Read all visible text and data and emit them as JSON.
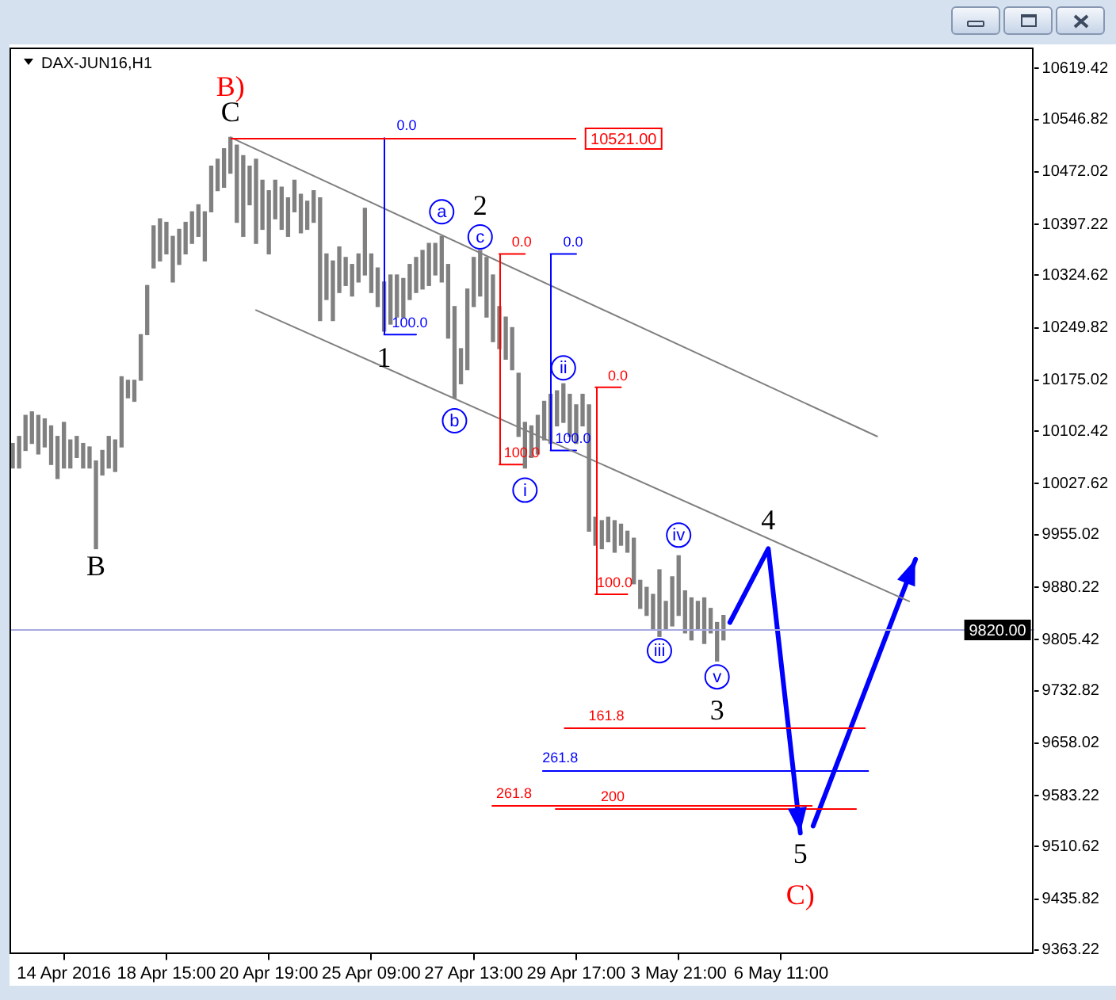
{
  "chart_data": {
    "type": "bar",
    "title": "DAX-JUN16,H1",
    "categories": [
      null,
      null,
      null,
      null,
      null,
      null,
      null,
      null,
      "14 Apr 2016",
      null,
      null,
      null,
      null,
      null,
      null,
      null,
      null,
      null,
      null,
      null,
      null,
      null,
      null,
      null,
      "18 Apr 15:00",
      null,
      null,
      null,
      null,
      null,
      null,
      null,
      null,
      null,
      null,
      null,
      null,
      null,
      null,
      null,
      "20 Apr 19:00",
      null,
      null,
      null,
      null,
      null,
      null,
      null,
      null,
      null,
      null,
      null,
      null,
      null,
      null,
      null,
      "25 Apr 09:00",
      null,
      null,
      null,
      null,
      null,
      null,
      null,
      null,
      null,
      null,
      null,
      null,
      null,
      null,
      null,
      "27 Apr 13:00",
      null,
      null,
      null,
      null,
      null,
      null,
      null,
      null,
      null,
      null,
      null,
      null,
      null,
      null,
      null,
      "29 Apr 17:00",
      null,
      null,
      null,
      null,
      null,
      null,
      null,
      null,
      null,
      null,
      null,
      null,
      null,
      null,
      null,
      "3 May 21:00",
      null,
      null,
      null,
      null,
      null,
      null,
      null,
      null,
      null,
      null,
      null,
      null,
      null,
      null,
      null,
      "6 May 11:00",
      null,
      null,
      null,
      null,
      null,
      null,
      null,
      null,
      null,
      null,
      null,
      null,
      null,
      null,
      null,
      null,
      null,
      null,
      null,
      null,
      null,
      null,
      null,
      null,
      null,
      null,
      null,
      null,
      null,
      null,
      null,
      null,
      null,
      null,
      null,
      null,
      null,
      null,
      null
    ],
    "series": [
      {
        "color": "#808080",
        "base": [
          10050,
          10050,
          10075,
          10085,
          10070,
          10080,
          10055,
          10035,
          10050,
          10050,
          10065,
          10050,
          10050,
          9935,
          10040,
          10050,
          10045,
          10080,
          10150,
          10145,
          10175,
          10240,
          10335,
          10345,
          10355,
          10315,
          10340,
          10355,
          10370,
          10380,
          10345,
          10415,
          10445,
          10450,
          10470,
          10400,
          10380,
          10425,
          10370,
          10390,
          10355,
          10405,
          10390,
          10380,
          10415,
          10385,
          10390,
          10400,
          10260,
          10290,
          10260,
          10300,
          10310,
          10295,
          10315,
          10325,
          10300,
          10280,
          10245,
          10255,
          10265,
          10265,
          10290,
          10300,
          10305,
          10310,
          10325,
          10315,
          10235,
          10150,
          10170,
          10190,
          10280,
          10295,
          10265,
          10230,
          10220,
          10205,
          10190,
          10095,
          10050,
          10065,
          10070,
          10090,
          10085,
          10110,
          10115,
          10095,
          10085,
          10110,
          9960,
          9940,
          9935,
          9945,
          9930,
          9940,
          9930,
          9885,
          9850,
          9840,
          9820,
          9810,
          9820,
          9825,
          9840,
          9815,
          9805,
          9820,
          9800,
          9815,
          9775,
          9805,
          null,
          null,
          null,
          null,
          null,
          null,
          null,
          null,
          null,
          null,
          null,
          null,
          null,
          null,
          null,
          null,
          null,
          null,
          null,
          null,
          null,
          null,
          null,
          null,
          null,
          null,
          null,
          null,
          null,
          null,
          null,
          null,
          null,
          null,
          null,
          null,
          null,
          null,
          null,
          null,
          null,
          null,
          null,
          null,
          null,
          null,
          null,
          null
        ],
        "values": [
          35,
          45,
          50,
          45,
          55,
          40,
          55,
          60,
          65,
          40,
          30,
          35,
          30,
          125,
          35,
          45,
          45,
          100,
          25,
          30,
          65,
          70,
          60,
          60,
          45,
          65,
          50,
          45,
          45,
          45,
          70,
          65,
          45,
          55,
          51,
          110,
          115,
          55,
          120,
          70,
          90,
          55,
          60,
          55,
          45,
          55,
          40,
          45,
          175,
          65,
          85,
          65,
          40,
          45,
          40,
          95,
          55,
          55,
          70,
          70,
          60,
          55,
          50,
          50,
          55,
          60,
          45,
          65,
          105,
          130,
          50,
          115,
          70,
          65,
          85,
          95,
          60,
          60,
          60,
          90,
          65,
          45,
          55,
          55,
          70,
          50,
          55,
          60,
          55,
          45,
          180,
          40,
          40,
          35,
          45,
          30,
          30,
          65,
          40,
          40,
          50,
          95,
          40,
          70,
          85,
          60,
          60,
          40,
          65,
          35,
          55,
          35,
          null,
          null,
          null,
          null,
          null,
          null,
          null,
          null,
          null,
          null,
          null,
          null,
          null,
          null,
          null,
          null,
          null,
          null,
          null,
          null,
          null,
          null,
          null,
          null,
          null,
          null,
          null,
          null,
          null,
          null,
          null,
          null,
          null,
          null,
          null,
          null,
          null,
          null,
          null,
          null,
          null,
          null,
          null,
          null,
          null,
          null,
          null,
          null
        ]
      },
      {
        "type": "line",
        "color": "#808080",
        "values": [
          null,
          null,
          null,
          null,
          null,
          null,
          null,
          null,
          null,
          null,
          null,
          null,
          null,
          null,
          null,
          null,
          null,
          null,
          null,
          null,
          null,
          null,
          null,
          null,
          null,
          null,
          null,
          null,
          null,
          null,
          null,
          null,
          null,
          null,
          10521,
          null,
          null,
          null,
          null,
          null,
          null,
          null,
          null,
          null,
          null,
          null,
          null,
          null,
          null,
          null,
          null,
          null,
          null,
          null,
          null,
          null,
          null,
          null,
          null,
          null,
          null,
          null,
          null,
          null,
          null,
          null,
          null,
          null,
          null,
          null,
          null,
          null,
          null,
          null,
          null,
          null,
          null,
          null,
          null,
          null,
          null,
          null,
          null,
          null,
          null,
          null,
          null,
          null,
          null,
          null,
          null,
          null,
          null,
          null,
          null,
          null,
          null,
          null,
          null,
          null,
          null,
          null,
          null,
          null,
          null,
          null,
          null,
          null,
          null,
          null,
          null,
          null,
          null,
          null,
          null,
          null,
          null,
          null,
          null,
          null,
          null,
          null,
          null,
          null,
          null,
          null,
          null,
          null,
          null,
          null,
          null,
          null,
          null,
          null,
          null,
          10095,
          null,
          null,
          null,
          null,
          null,
          null,
          null,
          null,
          null,
          null,
          null,
          null,
          null,
          null,
          null,
          null,
          null,
          null,
          null,
          null,
          null,
          null,
          null,
          null
        ]
      },
      {
        "type": "line",
        "color": "#808080",
        "values": [
          null,
          null,
          null,
          null,
          null,
          null,
          null,
          null,
          null,
          null,
          null,
          null,
          null,
          null,
          null,
          null,
          null,
          null,
          null,
          null,
          null,
          null,
          null,
          null,
          null,
          null,
          null,
          null,
          null,
          null,
          null,
          null,
          null,
          null,
          null,
          null,
          null,
          null,
          10275,
          null,
          null,
          null,
          null,
          null,
          null,
          null,
          null,
          null,
          null,
          null,
          null,
          null,
          null,
          null,
          null,
          null,
          null,
          null,
          null,
          null,
          null,
          null,
          null,
          null,
          null,
          null,
          null,
          null,
          null,
          null,
          null,
          null,
          null,
          null,
          null,
          null,
          null,
          null,
          null,
          null,
          null,
          null,
          null,
          null,
          null,
          null,
          null,
          null,
          null,
          null,
          null,
          null,
          null,
          null,
          null,
          null,
          null,
          null,
          null,
          null,
          null,
          null,
          null,
          null,
          null,
          null,
          null,
          null,
          null,
          null,
          null,
          null,
          null,
          null,
          null,
          null,
          null,
          null,
          null,
          null,
          null,
          null,
          null,
          null,
          null,
          null,
          null,
          null,
          null,
          null,
          null,
          null,
          null,
          null,
          null,
          null,
          null,
          null,
          null,
          null,
          9860,
          null,
          null,
          null,
          null,
          null,
          null,
          null,
          null,
          null,
          null,
          null,
          null,
          null,
          null,
          null,
          null,
          null,
          null,
          null
        ]
      },
      {
        "type": "line",
        "color": "#0000ff",
        "values": [
          null,
          null,
          null,
          null,
          null,
          null,
          null,
          null,
          null,
          null,
          null,
          null,
          null,
          null,
          null,
          null,
          null,
          null,
          null,
          null,
          null,
          null,
          null,
          null,
          null,
          null,
          null,
          null,
          null,
          null,
          null,
          null,
          null,
          null,
          null,
          null,
          null,
          null,
          null,
          null,
          null,
          null,
          null,
          null,
          null,
          null,
          null,
          null,
          null,
          null,
          null,
          null,
          null,
          null,
          null,
          null,
          null,
          null,
          null,
          null,
          null,
          null,
          null,
          null,
          null,
          null,
          null,
          null,
          null,
          null,
          null,
          null,
          null,
          null,
          null,
          null,
          null,
          null,
          null,
          null,
          null,
          null,
          null,
          null,
          null,
          null,
          null,
          null,
          null,
          null,
          null,
          null,
          null,
          null,
          null,
          null,
          null,
          null,
          null,
          null,
          null,
          null,
          null,
          null,
          null,
          null,
          null,
          null,
          null,
          null,
          null,
          null,
          9830,
          null,
          null,
          null,
          null,
          null,
          9935,
          null,
          null,
          null,
          null,
          9530,
          null,
          null,
          null,
          null,
          null,
          null,
          null,
          null,
          null,
          null,
          null,
          null,
          null,
          null,
          null,
          null,
          null,
          null,
          null,
          null,
          null,
          null,
          null,
          null,
          null,
          null,
          null,
          null,
          null,
          null,
          null,
          null,
          null,
          null,
          null,
          null
        ]
      },
      {
        "type": "line",
        "color": "#0000ff",
        "values": [
          null,
          null,
          null,
          null,
          null,
          null,
          null,
          null,
          null,
          null,
          null,
          null,
          null,
          null,
          null,
          null,
          null,
          null,
          null,
          null,
          null,
          null,
          null,
          null,
          null,
          null,
          null,
          null,
          null,
          null,
          null,
          null,
          null,
          null,
          null,
          null,
          null,
          null,
          null,
          null,
          null,
          null,
          null,
          null,
          null,
          null,
          null,
          null,
          null,
          null,
          null,
          null,
          null,
          null,
          null,
          null,
          null,
          null,
          null,
          null,
          null,
          null,
          null,
          null,
          null,
          null,
          null,
          null,
          null,
          null,
          null,
          null,
          null,
          null,
          null,
          null,
          null,
          null,
          null,
          null,
          null,
          null,
          null,
          null,
          null,
          null,
          null,
          null,
          null,
          null,
          null,
          null,
          null,
          null,
          null,
          null,
          null,
          null,
          null,
          null,
          null,
          null,
          null,
          null,
          null,
          null,
          null,
          null,
          null,
          null,
          null,
          null,
          null,
          null,
          null,
          null,
          null,
          null,
          null,
          null,
          null,
          null,
          null,
          null,
          null,
          9540,
          null,
          null,
          null,
          null,
          null,
          null,
          null,
          null,
          null,
          null,
          null,
          null,
          null,
          null,
          null,
          9920,
          null,
          null,
          null,
          null,
          null,
          null,
          null,
          null,
          null,
          null,
          null,
          null,
          null,
          null,
          null,
          null,
          null,
          null
        ]
      },
      {
        "type": "line",
        "color": "#0000ff",
        "values": [
          null,
          null,
          null,
          null,
          null,
          null,
          null,
          null,
          null,
          null,
          null,
          null,
          null,
          null,
          null,
          null,
          null,
          null,
          null,
          null,
          null,
          null,
          null,
          null,
          null,
          null,
          null,
          null,
          null,
          null,
          null,
          null,
          null,
          null,
          null,
          null,
          null,
          null,
          null,
          null,
          null,
          null,
          null,
          null,
          null,
          null,
          null,
          null,
          null,
          null,
          null,
          null,
          null,
          null,
          null,
          null,
          null,
          null,
          10240,
          null,
          null,
          null,
          null,
          10240,
          null,
          null,
          null,
          null,
          null,
          null,
          null,
          null,
          null,
          null,
          null,
          null,
          null,
          null,
          null,
          null,
          null,
          null,
          null,
          null,
          null,
          null,
          null,
          null,
          null,
          null,
          null,
          null,
          null,
          null,
          null,
          null,
          null,
          null,
          null,
          null,
          null,
          null,
          null,
          null,
          null,
          null,
          null,
          null,
          null,
          null,
          null,
          null,
          null,
          null,
          null,
          null,
          null,
          null,
          null,
          null,
          null,
          null,
          null,
          null,
          null,
          null,
          null,
          null,
          null,
          null,
          null,
          null,
          null,
          null,
          null,
          null,
          null,
          null,
          null,
          null,
          null,
          null,
          null,
          null,
          null,
          null,
          null,
          null,
          null,
          null,
          null,
          null,
          null,
          null,
          null,
          null,
          null,
          null,
          null,
          null
        ]
      },
      {
        "type": "line",
        "color": "#ff0000",
        "values": [
          null,
          null,
          null,
          null,
          null,
          null,
          null,
          null,
          null,
          null,
          null,
          null,
          null,
          null,
          null,
          null,
          null,
          null,
          null,
          null,
          null,
          null,
          null,
          null,
          null,
          null,
          null,
          null,
          null,
          null,
          null,
          null,
          null,
          null,
          null,
          null,
          null,
          null,
          null,
          null,
          null,
          null,
          null,
          null,
          null,
          null,
          null,
          null,
          null,
          null,
          null,
          null,
          null,
          null,
          null,
          null,
          null,
          null,
          null,
          null,
          null,
          null,
          null,
          null,
          null,
          null,
          null,
          null,
          null,
          null,
          null,
          null,
          null,
          null,
          null,
          null,
          10355,
          null,
          null,
          null,
          10355,
          null,
          null,
          null,
          null,
          null,
          null,
          null,
          null,
          null,
          null,
          null,
          null,
          null,
          null,
          null,
          null,
          null,
          null,
          null,
          null,
          null,
          null,
          null,
          null,
          null,
          null,
          null,
          null,
          null,
          null,
          null,
          null,
          null,
          null,
          null,
          null,
          null,
          null,
          null,
          null,
          null,
          null,
          null,
          null,
          null,
          null,
          null,
          null,
          null,
          null,
          null,
          null,
          null,
          null,
          null,
          null,
          null,
          null,
          null,
          null,
          null,
          null,
          null,
          null,
          null,
          null,
          null,
          null,
          null,
          null,
          null,
          null,
          null,
          null,
          null,
          null,
          null,
          null,
          null
        ]
      },
      {
        "type": "line",
        "color": "#ff0000",
        "values": [
          null,
          null,
          null,
          null,
          null,
          null,
          null,
          null,
          null,
          null,
          null,
          null,
          null,
          null,
          null,
          null,
          null,
          null,
          null,
          null,
          null,
          null,
          null,
          null,
          null,
          null,
          null,
          null,
          null,
          null,
          null,
          null,
          null,
          null,
          null,
          null,
          null,
          null,
          null,
          null,
          null,
          null,
          null,
          null,
          null,
          null,
          null,
          null,
          null,
          null,
          null,
          null,
          null,
          null,
          null,
          null,
          null,
          null,
          null,
          null,
          null,
          null,
          null,
          null,
          null,
          null,
          null,
          null,
          null,
          null,
          null,
          null,
          null,
          null,
          null,
          null,
          10055,
          null,
          null,
          null,
          10055,
          null,
          null,
          null,
          null,
          null,
          null,
          null,
          null,
          null,
          null,
          null,
          null,
          null,
          null,
          null,
          null,
          null,
          null,
          null,
          null,
          null,
          null,
          null,
          null,
          null,
          null,
          null,
          null,
          null,
          null,
          null,
          null,
          null,
          null,
          null,
          null,
          null,
          null,
          null,
          null,
          null,
          null,
          null,
          null,
          null,
          null,
          null,
          null,
          null,
          null,
          null,
          null,
          null,
          null,
          null,
          null,
          null,
          null,
          null,
          null,
          null,
          null,
          null,
          null,
          null,
          null,
          null,
          null,
          null,
          null,
          null,
          null,
          null,
          null,
          null,
          null,
          null,
          null,
          null
        ]
      },
      {
        "type": "line",
        "color": "#0000ff",
        "values": [
          null,
          null,
          null,
          null,
          null,
          null,
          null,
          null,
          null,
          null,
          null,
          null,
          null,
          null,
          null,
          null,
          null,
          null,
          null,
          null,
          null,
          null,
          null,
          null,
          null,
          null,
          null,
          null,
          null,
          null,
          null,
          null,
          null,
          null,
          null,
          null,
          null,
          null,
          null,
          null,
          null,
          null,
          null,
          null,
          null,
          null,
          null,
          null,
          null,
          null,
          null,
          null,
          null,
          null,
          null,
          null,
          null,
          null,
          null,
          null,
          null,
          null,
          null,
          null,
          null,
          null,
          null,
          null,
          null,
          null,
          null,
          null,
          null,
          null,
          null,
          null,
          null,
          null,
          null,
          null,
          null,
          null,
          null,
          null,
          10355,
          null,
          null,
          null,
          10355,
          null,
          null,
          null,
          null,
          null,
          null,
          null,
          null,
          null,
          null,
          null,
          null,
          null,
          null,
          null,
          null,
          null,
          null,
          null,
          null,
          null,
          null,
          null,
          null,
          null,
          null,
          null,
          null,
          null,
          null,
          null,
          null,
          null,
          null,
          null,
          null,
          null,
          null,
          null,
          null,
          null,
          null,
          null,
          null,
          null,
          null,
          null,
          null,
          null,
          null,
          null,
          null,
          null,
          null,
          null,
          null,
          null,
          null,
          null,
          null,
          null,
          null,
          null,
          null,
          null,
          null,
          null,
          null,
          null,
          null,
          null
        ]
      },
      {
        "type": "line",
        "color": "#0000ff",
        "values": [
          null,
          null,
          null,
          null,
          null,
          null,
          null,
          null,
          null,
          null,
          null,
          null,
          null,
          null,
          null,
          null,
          null,
          null,
          null,
          null,
          null,
          null,
          null,
          null,
          null,
          null,
          null,
          null,
          null,
          null,
          null,
          null,
          null,
          null,
          null,
          null,
          null,
          null,
          null,
          null,
          null,
          null,
          null,
          null,
          null,
          null,
          null,
          null,
          null,
          null,
          null,
          null,
          null,
          null,
          null,
          null,
          null,
          null,
          null,
          null,
          null,
          null,
          null,
          null,
          null,
          null,
          null,
          null,
          null,
          null,
          null,
          null,
          null,
          null,
          null,
          null,
          null,
          null,
          null,
          null,
          null,
          null,
          null,
          null,
          10075,
          null,
          null,
          null,
          10075,
          null,
          null,
          null,
          null,
          null,
          null,
          null,
          null,
          null,
          null,
          null,
          null,
          null,
          null,
          null,
          null,
          null,
          null,
          null,
          null,
          null,
          null,
          null,
          null,
          null,
          null,
          null,
          null,
          null,
          null,
          null,
          null,
          null,
          null,
          null,
          null,
          null,
          null,
          null,
          null,
          null,
          null,
          null,
          null,
          null,
          null,
          null,
          null,
          null,
          null,
          null,
          null,
          null,
          null,
          null,
          null,
          null,
          null,
          null,
          null,
          null,
          null,
          null,
          null,
          null,
          null,
          null,
          null,
          null,
          null,
          null
        ]
      },
      {
        "type": "line",
        "color": "#ff0000",
        "values": [
          null,
          null,
          null,
          null,
          null,
          null,
          null,
          null,
          null,
          null,
          null,
          null,
          null,
          null,
          null,
          null,
          null,
          null,
          null,
          null,
          null,
          null,
          null,
          null,
          null,
          null,
          null,
          null,
          null,
          null,
          null,
          null,
          null,
          null,
          null,
          null,
          null,
          null,
          null,
          null,
          null,
          null,
          null,
          null,
          null,
          null,
          null,
          null,
          null,
          null,
          null,
          null,
          null,
          null,
          null,
          null,
          null,
          null,
          null,
          null,
          null,
          null,
          null,
          null,
          null,
          null,
          null,
          null,
          null,
          null,
          null,
          null,
          null,
          null,
          null,
          null,
          null,
          null,
          null,
          null,
          null,
          null,
          null,
          null,
          null,
          null,
          null,
          null,
          null,
          null,
          null,
          10165,
          null,
          null,
          null,
          10165,
          null,
          null,
          null,
          null,
          null,
          null,
          null,
          null,
          null,
          null,
          null,
          null,
          null,
          null,
          null,
          null,
          null,
          null,
          null,
          null,
          null,
          null,
          null,
          null,
          null,
          null,
          null,
          null,
          null,
          null,
          null,
          null,
          null,
          null,
          null,
          null,
          null,
          null,
          null,
          null,
          null,
          null,
          null,
          null,
          null,
          null,
          null,
          null,
          null,
          null,
          null,
          null,
          null,
          null,
          null,
          null,
          null,
          null,
          null,
          null,
          null,
          null,
          null,
          null
        ]
      },
      {
        "type": "line",
        "color": "#ff0000",
        "values": [
          null,
          null,
          null,
          null,
          null,
          null,
          null,
          null,
          null,
          null,
          null,
          null,
          null,
          null,
          null,
          null,
          null,
          null,
          null,
          null,
          null,
          null,
          null,
          null,
          null,
          null,
          null,
          null,
          null,
          null,
          null,
          null,
          null,
          null,
          null,
          null,
          null,
          null,
          null,
          null,
          null,
          null,
          null,
          null,
          null,
          null,
          null,
          null,
          null,
          null,
          null,
          null,
          null,
          null,
          null,
          null,
          null,
          null,
          null,
          null,
          null,
          null,
          null,
          null,
          null,
          null,
          null,
          null,
          null,
          null,
          null,
          null,
          null,
          null,
          null,
          null,
          null,
          null,
          null,
          null,
          null,
          null,
          null,
          null,
          null,
          null,
          null,
          null,
          null,
          null,
          null,
          9870,
          null,
          null,
          null,
          null,
          9870,
          null,
          null,
          null,
          null,
          null,
          null,
          null,
          null,
          null,
          null,
          null,
          null,
          null,
          null,
          null,
          null,
          null,
          null,
          null,
          null,
          null,
          null,
          null,
          null,
          null,
          null,
          null,
          null,
          null,
          null,
          null,
          null,
          null,
          null,
          null,
          null,
          null,
          null,
          null,
          null,
          null,
          null,
          null,
          null,
          null,
          null,
          null,
          null,
          null,
          null,
          null,
          null,
          null,
          null,
          null,
          null,
          null,
          null,
          null,
          null,
          null,
          null,
          null
        ]
      }
    ],
    "ylim": [
      9358,
      10649
    ],
    "yticks": [
      9363.22,
      9435.82,
      9510.62,
      9583.22,
      9658.02,
      9732.82,
      9805.42,
      9880.22,
      9955.02,
      10027.62,
      10102.42,
      10175.02,
      10249.82,
      10324.62,
      10397.22,
      10472.02,
      10546.82,
      10619.42
    ],
    "ref_lines": [
      {
        "axis": "y",
        "value": 10521,
        "label": "10521.00",
        "color": "#ff0000"
      },
      {
        "axis": "y",
        "value": 9680,
        "color": "#ff0000"
      },
      {
        "axis": "y",
        "value": 9620,
        "color": "#0000ff"
      },
      {
        "axis": "y",
        "value": 9570,
        "color": "#ff0000"
      },
      {
        "axis": "y",
        "value": 9565,
        "color": "#ff0000"
      },
      {
        "axis": "y",
        "value": 9820,
        "label": "9820.00",
        "color": "#a8a8e0"
      }
    ],
    "annotations": [
      {
        "text": "B)",
        "y": 10521
      },
      {
        "text": "C",
        "y": 10521
      },
      {
        "text": "B",
        "y": 9935
      },
      {
        "text": "1",
        "y": 10245
      },
      {
        "text": "a",
        "y": 10380
      },
      {
        "text": "2",
        "y": 10360
      },
      {
        "text": "c",
        "y": 10360
      },
      {
        "text": "b",
        "y": 10150
      },
      {
        "text": "i",
        "y": 10050
      },
      {
        "text": "ii",
        "y": 10170
      },
      {
        "text": "iii",
        "y": 9810
      },
      {
        "text": "iv",
        "y": 9925
      },
      {
        "text": "v",
        "y": 9775
      },
      {
        "text": "3",
        "y": 9775
      },
      {
        "text": "4",
        "y": 9935
      },
      {
        "text": "5",
        "y": 9530
      },
      {
        "text": "C)",
        "y": 9530
      },
      {
        "text": "0.0",
        "y": 10521
      },
      {
        "text": "100.0",
        "y": 10240
      },
      {
        "text": "0.0",
        "y": 10355
      },
      {
        "text": "100.0",
        "y": 10055
      },
      {
        "text": "0.0",
        "y": 10355
      },
      {
        "text": "100.0",
        "y": 10075
      },
      {
        "text": "0.0",
        "y": 10165
      },
      {
        "text": "100.0",
        "y": 9870
      },
      {
        "text": "161.8",
        "y": 9680
      },
      {
        "text": "261.8",
        "y": 9620
      },
      {
        "text": "261.8",
        "y": 9570
      },
      {
        "text": "200",
        "y": 9565
      }
    ]
  }
}
